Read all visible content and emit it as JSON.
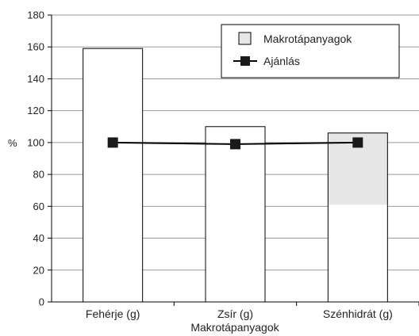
{
  "chart_data": {
    "type": "bar",
    "categories": [
      "Fehérje (g)",
      "Zsír (g)",
      "Szénhidrát (g)"
    ],
    "series": [
      {
        "name": "Makrotápanyagok",
        "kind": "bar",
        "values": [
          159,
          110,
          106
        ],
        "shaded_base": [
          null,
          null,
          61
        ],
        "color": "#ffffff",
        "shade_color": "#e6e6e6",
        "stroke": "#000000"
      },
      {
        "name": "Ajánlás",
        "kind": "line",
        "values": [
          100,
          99,
          100
        ],
        "color": "#000000"
      }
    ],
    "xlabel": "Makrotápanyagok",
    "ylabel": "%",
    "ylim": [
      0,
      180
    ],
    "yticks": [
      0,
      20,
      40,
      60,
      80,
      100,
      120,
      140,
      160,
      180
    ],
    "grid": true,
    "legend_position": "top-right"
  }
}
